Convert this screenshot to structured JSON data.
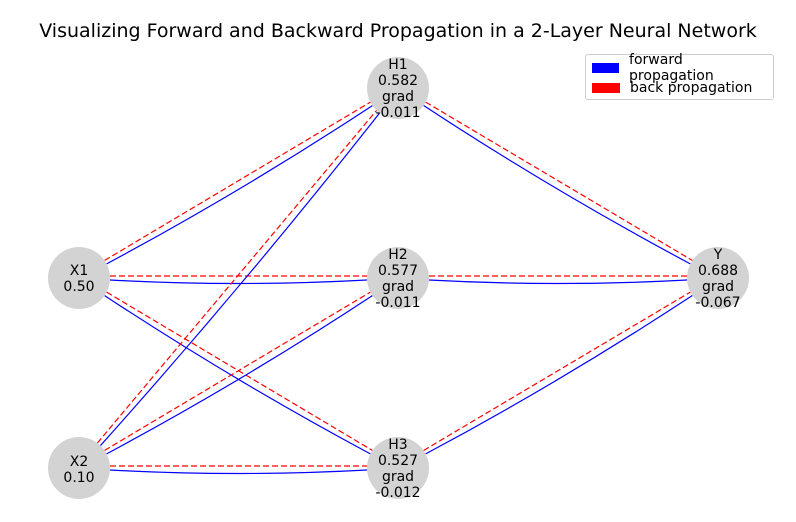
{
  "title": "Visualizing Forward and Backward Propagation in a 2-Layer Neural Network",
  "colors": {
    "node_fill": "#d3d3d3",
    "forward": "#0000ff",
    "backward": "#ff0000"
  },
  "legend": {
    "forward_label": "forward propagation",
    "backward_label": "back propagation"
  },
  "nodes": {
    "x1": {
      "name": "X1",
      "value": "0.50"
    },
    "x2": {
      "name": "X2",
      "value": "0.10"
    },
    "h1": {
      "name": "H1",
      "value": "0.582",
      "grad_label": "grad",
      "grad": "-0.011"
    },
    "h2": {
      "name": "H2",
      "value": "0.577",
      "grad_label": "grad",
      "grad": "-0.011"
    },
    "h3": {
      "name": "H3",
      "value": "0.527",
      "grad_label": "grad",
      "grad": "-0.012"
    },
    "y": {
      "name": "Y",
      "value": "0.688",
      "grad_label": "grad",
      "grad": "-0.067"
    }
  },
  "edges": [
    {
      "from": "x1",
      "to": "h1"
    },
    {
      "from": "x1",
      "to": "h2"
    },
    {
      "from": "x1",
      "to": "h3"
    },
    {
      "from": "x2",
      "to": "h1"
    },
    {
      "from": "x2",
      "to": "h2"
    },
    {
      "from": "x2",
      "to": "h3"
    },
    {
      "from": "h1",
      "to": "y"
    },
    {
      "from": "h2",
      "to": "y"
    },
    {
      "from": "h3",
      "to": "y"
    }
  ]
}
